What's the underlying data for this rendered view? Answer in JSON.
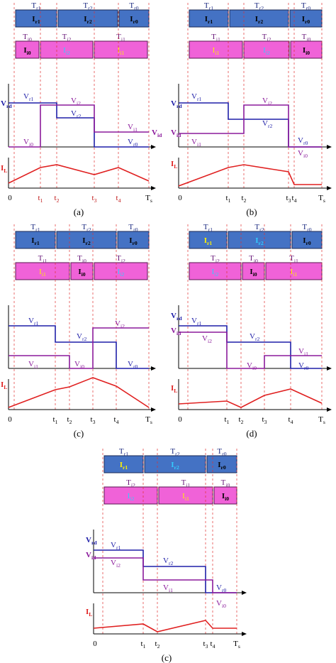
{
  "colors": {
    "blue_box": "#4472C4",
    "pink_box": "#F062D8",
    "blue_line": "#1f1fa8",
    "purple_line": "#8B1A9B",
    "red_line": "#e02020",
    "guide": "#e03030",
    "white": "#ffffff",
    "yellow": "#FFF200",
    "cyan": "#33CCFF",
    "black": "#000000"
  },
  "panels": [
    {
      "caption": "(a)",
      "t_labels": [
        "0",
        "t1",
        "t2",
        "t3",
        "t4",
        "Ts"
      ],
      "t_label_color": "#c01818",
      "top_boxes": [
        {
          "T": "Tr1",
          "I": "Ir1",
          "color": "#000000",
          "bold": true
        },
        {
          "T": "Tr2",
          "I": "Ir2",
          "color": "#000000",
          "bold": true
        },
        {
          "T": "Tr0",
          "I": "Ir0",
          "color": "#000000",
          "bold": true
        }
      ],
      "bottom_boxes": [
        {
          "T": "Ti0",
          "I": "Ii0",
          "color": "#000000",
          "bold": true
        },
        {
          "T": "Ti2",
          "I": "Ii2",
          "color": "#33CCFF",
          "bold": false
        },
        {
          "T": "Ti1",
          "I": "Ii1",
          "color": "#FFF200",
          "bold": false
        }
      ],
      "labels": {
        "Vrd": "Vrd",
        "Vid": "Vid",
        "IL": "IL"
      },
      "series_labels": [
        "Vr1",
        "Vi2",
        "Vr2",
        "Vi1",
        "Vr0",
        "Vi0"
      ]
    },
    {
      "caption": "(b)",
      "t_labels": [
        "0",
        "t1",
        "t2",
        "t3",
        "t4",
        "Ts"
      ],
      "top_boxes": [
        {
          "T": "Tr1",
          "I": "Ir1",
          "color": "#000000",
          "bold": true
        },
        {
          "T": "Tr2",
          "I": "Ir2",
          "color": "#000000",
          "bold": true
        },
        {
          "T": "Tr0",
          "I": "Ir0",
          "color": "#000000",
          "bold": true
        }
      ],
      "bottom_boxes": [
        {
          "T": "Ti1",
          "I": "Ii1",
          "color": "#FFF200",
          "bold": false
        },
        {
          "T": "Ti2",
          "I": "Ii2",
          "color": "#33CCFF",
          "bold": false
        },
        {
          "T": "Ti0",
          "I": "Ii0",
          "color": "#000000",
          "bold": true
        }
      ],
      "labels": {
        "Vrd": "Vrd",
        "Vid": "Vid",
        "IL": "IL"
      },
      "series_labels": [
        "Vr1",
        "Vi2",
        "Vr2",
        "Vi1",
        "Vr0",
        "Vi0"
      ]
    },
    {
      "caption": "(c)",
      "t_labels": [
        "0",
        "t1",
        "t2",
        "t3",
        "t4",
        "Ts"
      ],
      "top_boxes": [
        {
          "T": "Tr1",
          "I": "Ir1",
          "color": "#000000",
          "bold": true
        },
        {
          "T": "Tr2",
          "I": "Ir2",
          "color": "#000000",
          "bold": true
        },
        {
          "T": "Tr0",
          "I": "Ir0",
          "color": "#000000",
          "bold": true
        }
      ],
      "bottom_boxes": [
        {
          "T": "Ti1",
          "I": "Ii1",
          "color": "#FFF200",
          "bold": false
        },
        {
          "T": "Ti0",
          "I": "Ii0",
          "color": "#000000",
          "bold": true
        },
        {
          "T": "Ti2",
          "I": "Ii2",
          "color": "#33CCFF",
          "bold": false
        }
      ],
      "labels": {
        "IL": "IL"
      },
      "series_labels": [
        "Vr1",
        "Vi2",
        "Vr2",
        "Vi1",
        "Vi0",
        "Vr0"
      ]
    },
    {
      "caption": "(d)",
      "t_labels": [
        "0",
        "t1",
        "t2",
        "t3",
        "t4",
        "Ts"
      ],
      "top_boxes": [
        {
          "T": "Tr1",
          "I": "Ir1",
          "color": "#FFF200",
          "bold": false
        },
        {
          "T": "Tr2",
          "I": "Ir2",
          "color": "#33CCFF",
          "bold": false
        },
        {
          "T": "Tr0",
          "I": "Ir0",
          "color": "#000000",
          "bold": true
        }
      ],
      "bottom_boxes": [
        {
          "T": "Ti2",
          "I": "Ii2",
          "color": "#33CCFF",
          "bold": false
        },
        {
          "T": "Ti0",
          "I": "Ii0",
          "color": "#000000",
          "bold": true
        },
        {
          "T": "Ti1",
          "I": "Ii1",
          "color": "#FFF200",
          "bold": false
        }
      ],
      "labels": {
        "Vrd": "Vrd",
        "Vid": "Vid",
        "IL": "IL"
      },
      "series_labels": [
        "Vr1",
        "Vi2",
        "Vr2",
        "Vi0",
        "Vi1",
        "Vr0"
      ]
    },
    {
      "caption": "(c)",
      "t_labels": [
        "0",
        "t1",
        "t2",
        "t3",
        "t4",
        "Ts"
      ],
      "top_boxes": [
        {
          "T": "Tr1",
          "I": "Ir1",
          "color": "#FFF200",
          "bold": false
        },
        {
          "T": "Tr2",
          "I": "Ir2",
          "color": "#33CCFF",
          "bold": false
        },
        {
          "T": "Tr0",
          "I": "Ir0",
          "color": "#000000",
          "bold": true
        }
      ],
      "bottom_boxes": [
        {
          "T": "Ti2",
          "I": "Ii2",
          "color": "#33CCFF",
          "bold": false
        },
        {
          "T": "Ti1",
          "I": "Ii1",
          "color": "#FFF200",
          "bold": false
        },
        {
          "T": "Ti0",
          "I": "Ii0",
          "color": "#000000",
          "bold": true
        }
      ],
      "labels": {
        "Vrd": "Vrd",
        "Vid": "Vid",
        "IL": "IL"
      },
      "series_labels": [
        "Vr1",
        "Vi2",
        "Vr2",
        "Vi1",
        "Vr0",
        "Vi0"
      ]
    }
  ]
}
